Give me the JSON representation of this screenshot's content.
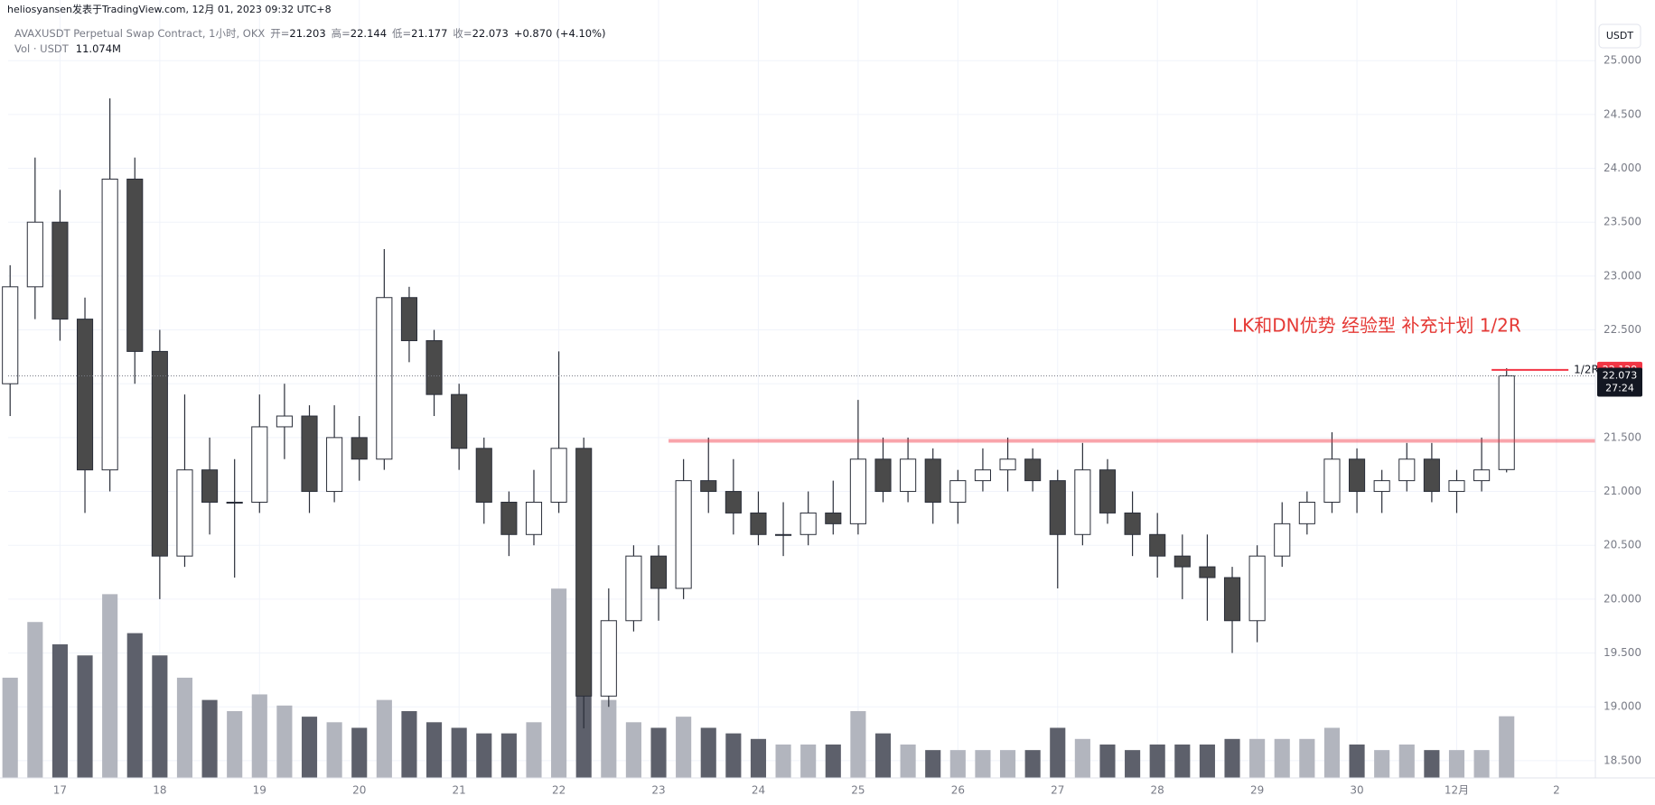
{
  "chart_data": {
    "type": "candlestick",
    "header": "heliosyansen发表于TradingView.com, 12月 01, 2023 09:32 UTC+8",
    "title": "AVAXUSDT Perpetual Swap Contract, 1小时, OKX",
    "ohlc_legend": [
      {
        "label": "开=",
        "value": 21.203
      },
      {
        "label": "高=",
        "value": 22.144
      },
      {
        "label": "低=",
        "value": 21.177
      },
      {
        "label": "收=",
        "value": 22.073
      }
    ],
    "change": {
      "value": 0.87,
      "label": "+0.870"
    },
    "change_pct": {
      "value": 4.1,
      "label": "(+4.10%)"
    },
    "volume_title": "Vol · USDT",
    "volume_current": {
      "value": 11074000,
      "label": "11.074M"
    },
    "currency": "USDT",
    "countdown": "27:24",
    "annotation": "LK和DN优势 经验型 补充计划 1/2R",
    "x": [
      16.5,
      16.75,
      17,
      17.25,
      17.5,
      17.75,
      18,
      18.25,
      18.5,
      18.75,
      19,
      19.25,
      19.5,
      19.75,
      20,
      20.25,
      20.5,
      20.75,
      21,
      21.25,
      21.5,
      21.75,
      22,
      22.25,
      22.5,
      22.75,
      23,
      23.25,
      23.5,
      23.75,
      24,
      24.25,
      24.5,
      24.75,
      25,
      25.25,
      25.5,
      25.75,
      26,
      26.25,
      26.5,
      26.75,
      27,
      27.25,
      27.5,
      27.75,
      28,
      28.25,
      28.5,
      28.75,
      29,
      29.25,
      29.5,
      29.75,
      30,
      30.25,
      30.5,
      30.75,
      31,
      31.25,
      31.5
    ],
    "open": [
      22.0,
      22.9,
      23.5,
      22.6,
      21.2,
      23.9,
      22.3,
      20.4,
      21.2,
      20.9,
      20.9,
      21.6,
      21.7,
      21.0,
      21.5,
      21.3,
      22.8,
      22.4,
      21.9,
      21.4,
      20.9,
      20.6,
      20.9,
      21.4,
      19.1,
      19.8,
      20.4,
      20.1,
      21.1,
      21.0,
      20.8,
      20.6,
      20.6,
      20.8,
      20.7,
      21.3,
      21.0,
      21.3,
      20.9,
      21.1,
      21.2,
      21.3,
      21.1,
      20.6,
      21.2,
      20.8,
      20.6,
      20.4,
      20.3,
      20.2,
      19.8,
      20.4,
      20.7,
      20.9,
      21.3,
      21.0,
      21.1,
      21.3,
      21.0,
      21.1,
      21.203
    ],
    "high": [
      23.1,
      24.1,
      23.8,
      22.8,
      24.65,
      24.1,
      22.5,
      21.9,
      21.5,
      21.3,
      21.9,
      22.0,
      21.8,
      21.8,
      21.7,
      23.25,
      22.9,
      22.5,
      22.0,
      21.5,
      21.0,
      21.2,
      22.3,
      21.5,
      20.1,
      20.5,
      20.5,
      21.3,
      21.5,
      21.3,
      21.0,
      20.9,
      21.0,
      21.1,
      21.85,
      21.5,
      21.5,
      21.4,
      21.2,
      21.4,
      21.5,
      21.4,
      21.2,
      21.45,
      21.3,
      21.0,
      20.8,
      20.6,
      20.6,
      20.3,
      20.5,
      20.9,
      21.0,
      21.55,
      21.4,
      21.2,
      21.45,
      21.45,
      21.2,
      21.5,
      22.144
    ],
    "low": [
      21.7,
      22.6,
      22.4,
      20.8,
      21.0,
      22.0,
      20.0,
      20.3,
      20.6,
      20.2,
      20.8,
      21.3,
      20.8,
      20.9,
      21.1,
      21.2,
      22.2,
      21.7,
      21.2,
      20.7,
      20.4,
      20.5,
      20.8,
      18.8,
      19.0,
      19.7,
      19.8,
      20.0,
      20.8,
      20.6,
      20.5,
      20.4,
      20.5,
      20.6,
      20.6,
      20.9,
      20.9,
      20.7,
      20.7,
      21.0,
      21.0,
      21.0,
      20.1,
      20.5,
      20.7,
      20.4,
      20.2,
      20.0,
      19.8,
      19.5,
      19.6,
      20.3,
      20.6,
      20.8,
      20.8,
      20.8,
      21.0,
      20.9,
      20.8,
      21.0,
      21.177
    ],
    "close": [
      22.9,
      23.5,
      22.6,
      21.2,
      23.9,
      22.3,
      20.4,
      21.2,
      20.9,
      20.9,
      21.6,
      21.7,
      21.0,
      21.5,
      21.3,
      22.8,
      22.4,
      21.9,
      21.4,
      20.9,
      20.6,
      20.9,
      21.4,
      19.1,
      19.8,
      20.4,
      20.1,
      21.1,
      21.0,
      20.8,
      20.6,
      20.6,
      20.8,
      20.7,
      21.3,
      21.0,
      21.3,
      20.9,
      21.1,
      21.2,
      21.3,
      21.1,
      20.6,
      21.2,
      20.8,
      20.6,
      20.4,
      20.3,
      20.2,
      19.8,
      20.4,
      20.7,
      20.9,
      21.3,
      21.0,
      21.1,
      21.3,
      21.0,
      21.1,
      21.2,
      22.073
    ],
    "volume": [
      18000000,
      28000000,
      24000000,
      22000000,
      33000000,
      26000000,
      22000000,
      18000000,
      14000000,
      12000000,
      15000000,
      13000000,
      11000000,
      10000000,
      9000000,
      14000000,
      12000000,
      10000000,
      9000000,
      8000000,
      8000000,
      10000000,
      34000000,
      26000000,
      14000000,
      10000000,
      9000000,
      11000000,
      9000000,
      8000000,
      7000000,
      6000000,
      6000000,
      6000000,
      12000000,
      8000000,
      6000000,
      5000000,
      5000000,
      5000000,
      5000000,
      5000000,
      9000000,
      7000000,
      6000000,
      5000000,
      6000000,
      6000000,
      6000000,
      7000000,
      7000000,
      7000000,
      7000000,
      9000000,
      6000000,
      5000000,
      6000000,
      5000000,
      5000000,
      5000000,
      11074000
    ],
    "volume_lim": [
      0,
      135000000
    ],
    "xlim": [
      16.48,
      32.39
    ],
    "ylim": [
      18.34,
      25.32
    ],
    "xticks": [
      17,
      18,
      19,
      20,
      21,
      22,
      23,
      24,
      25,
      26,
      27,
      28,
      29,
      30,
      {
        "value": 31,
        "label": "12月"
      },
      {
        "value": 32,
        "label": "2"
      }
    ],
    "yticks": [
      {
        "value": 18.5,
        "label": "18.500"
      },
      {
        "value": 19,
        "label": "19.000"
      },
      {
        "value": 19.5,
        "label": "19.500"
      },
      {
        "value": 20,
        "label": "20.000"
      },
      {
        "value": 20.5,
        "label": "20.500"
      },
      {
        "value": 21,
        "label": "21.000"
      },
      {
        "value": 21.5,
        "label": "21.500"
      },
      {
        "value": 22,
        "label": "22.000"
      },
      {
        "value": 22.5,
        "label": "22.500"
      },
      {
        "value": 23,
        "label": "23.000"
      },
      {
        "value": 23.5,
        "label": "23.500"
      },
      {
        "value": 24,
        "label": "24.000"
      },
      {
        "value": 24.5,
        "label": "24.500"
      },
      {
        "value": 25,
        "label": "25.000"
      }
    ],
    "grid": true,
    "up_color": "#ffffff",
    "down_color": "#4a4a4a",
    "wick_color": "#2a2e39",
    "volume_up_color": "#b2b5be",
    "volume_down_color": "#5d606b",
    "hlines": [
      {
        "value": 21.47,
        "x": [
          23.1,
          32.39
        ],
        "color": "rgba(242,54,69,0.45)"
      },
      {
        "value": 22.129,
        "x": [
          31.35,
          32.12
        ],
        "color": "#f23645",
        "label": "1/2R"
      }
    ]
  }
}
